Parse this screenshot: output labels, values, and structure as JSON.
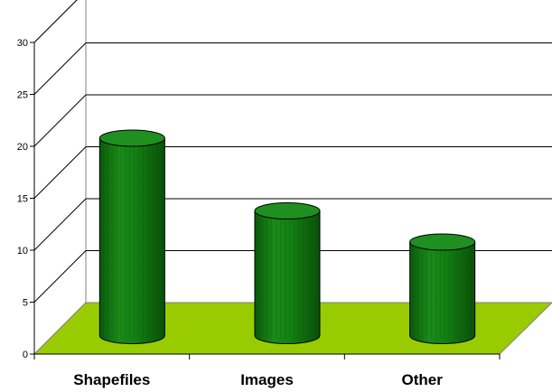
{
  "chart_data": {
    "type": "bar",
    "categories": [
      "Shapefiles",
      "Images",
      "Other"
    ],
    "values": [
      19,
      12,
      9
    ],
    "ylim": [
      0,
      30
    ],
    "yticks": [
      "0",
      "5",
      "10",
      "15",
      "20",
      "25",
      "30"
    ],
    "grid": true,
    "legend": "none",
    "title": "",
    "xlabel": "",
    "ylabel": "",
    "colors": {
      "bar_body": "#117711",
      "bar_top": "#1f8f1f",
      "bar_stripe": "#0c5e0c",
      "floor": "#99cc00",
      "gridline": "#000000",
      "wall": "#ffffff"
    }
  }
}
